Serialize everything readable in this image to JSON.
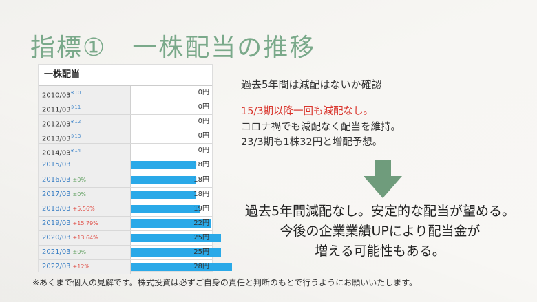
{
  "slide": {
    "title": "指標①　一株配当の推移",
    "table": {
      "title": "一株配当",
      "rows": [
        {
          "year": "2010/03",
          "note": "※10",
          "change": "",
          "change_type": "",
          "value": "0円",
          "fill": 0
        },
        {
          "year": "2011/03",
          "note": "※11",
          "change": "",
          "change_type": "",
          "value": "0円",
          "fill": 0
        },
        {
          "year": "2012/03",
          "note": "※12",
          "change": "",
          "change_type": "",
          "value": "0円",
          "fill": 0
        },
        {
          "year": "2013/03",
          "note": "※13",
          "change": "",
          "change_type": "",
          "value": "0円",
          "fill": 0
        },
        {
          "year": "2014/03",
          "note": "※14",
          "change": "",
          "change_type": "",
          "value": "0円",
          "fill": 0
        },
        {
          "year": "2015/03",
          "note": "",
          "change": "",
          "change_type": "",
          "value": "18円",
          "fill": 18
        },
        {
          "year": "2016/03",
          "note": "",
          "change": "±0%",
          "change_type": "flat",
          "value": "18円",
          "fill": 18
        },
        {
          "year": "2017/03",
          "note": "",
          "change": "±0%",
          "change_type": "flat",
          "value": "18円",
          "fill": 18
        },
        {
          "year": "2018/03",
          "note": "",
          "change": "+5.56%",
          "change_type": "up",
          "value": "19円",
          "fill": 19
        },
        {
          "year": "2019/03",
          "note": "",
          "change": "+15.79%",
          "change_type": "up",
          "value": "22円",
          "fill": 22
        },
        {
          "year": "2020/03",
          "note": "",
          "change": "+13.64%",
          "change_type": "up",
          "value": "25円",
          "fill": 25
        },
        {
          "year": "2021/03",
          "note": "",
          "change": "±0%",
          "change_type": "flat",
          "value": "25円",
          "fill": 25
        },
        {
          "year": "2022/03",
          "note": "",
          "change": "+12%",
          "change_type": "up",
          "value": "28円",
          "fill": 28
        }
      ],
      "fill_max": 28
    },
    "check_heading": "過去5年間は減配はないか確認",
    "highlight": "15/3期以降一回も減配なし。",
    "notes": [
      "コロナ禍でも減配なく配当を維持。",
      "23/3期も1株32円と増配予想。"
    ],
    "conclusion": [
      "過去5年間減配なし。安定的な配当が望める。",
      "今後の企業業績UPにより配当金が",
      "増える可能性もある。"
    ],
    "disclaimer": "※あくまで個人の見解です。株式投資は必ずご自身の責任と判断のもとで行うようにお願いいたします。"
  },
  "colors": {
    "title": "#7aa98a",
    "arrow": "#6f9c7c",
    "bar": "#2aa9e8",
    "highlight": "#d9342b",
    "change_up": "#e0524a",
    "change_flat": "#6aa56a",
    "year_blue": "#3a7fc4"
  }
}
